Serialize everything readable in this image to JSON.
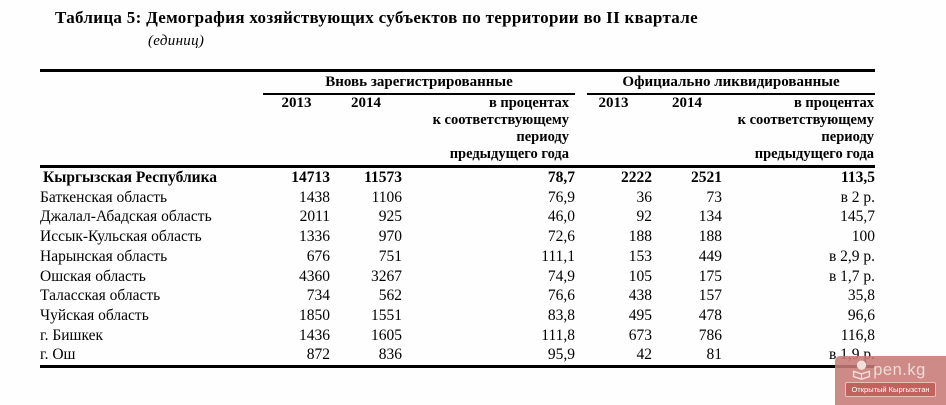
{
  "page": {
    "title": "Таблица 5: Демография хозяйствующих субъектов по территории во II квартале",
    "subtitle": "(единиц)"
  },
  "table": {
    "group1": "Вновь зарегистрированные",
    "group2": "Официально ликвидированные",
    "year_col1": "2013",
    "year_col2": "2014",
    "pct_header": "в процентах\nк соответствующему\nпериоду\nпредыдущего года",
    "rows": [
      {
        "territory": "Кыргызская Республика",
        "reg2013": "14713",
        "reg2014": "11573",
        "reg_pct": "78,7",
        "liq2013": "2222",
        "liq2014": "2521",
        "liq_pct": "113,5",
        "bold": true
      },
      {
        "territory": "Баткенская область",
        "reg2013": "1438",
        "reg2014": "1106",
        "reg_pct": "76,9",
        "liq2013": "36",
        "liq2014": "73",
        "liq_pct": "в 2 р.",
        "bold": false
      },
      {
        "territory": "Джалал-Абадская область",
        "reg2013": "2011",
        "reg2014": "925",
        "reg_pct": "46,0",
        "liq2013": "92",
        "liq2014": "134",
        "liq_pct": "145,7",
        "bold": false
      },
      {
        "territory": "Иссык-Кульская область",
        "reg2013": "1336",
        "reg2014": "970",
        "reg_pct": "72,6",
        "liq2013": "188",
        "liq2014": "188",
        "liq_pct": "100",
        "bold": false
      },
      {
        "territory": "Нарынская область",
        "reg2013": "676",
        "reg2014": "751",
        "reg_pct": "111,1",
        "liq2013": "153",
        "liq2014": "449",
        "liq_pct": "в 2,9 р.",
        "bold": false
      },
      {
        "territory": "Ошская область",
        "reg2013": "4360",
        "reg2014": "3267",
        "reg_pct": "74,9",
        "liq2013": "105",
        "liq2014": "175",
        "liq_pct": "в 1,7 р.",
        "bold": false
      },
      {
        "territory": "Таласская область",
        "reg2013": "734",
        "reg2014": "562",
        "reg_pct": "76,6",
        "liq2013": "438",
        "liq2014": "157",
        "liq_pct": "35,8",
        "bold": false
      },
      {
        "territory": "Чуйская область",
        "reg2013": "1850",
        "reg2014": "1551",
        "reg_pct": "83,8",
        "liq2013": "495",
        "liq2014": "478",
        "liq_pct": "96,6",
        "bold": false
      },
      {
        "territory": "г. Бишкек",
        "reg2013": "1436",
        "reg2014": "1605",
        "reg_pct": "111,8",
        "liq2013": "673",
        "liq2014": "786",
        "liq_pct": "116,8",
        "bold": false
      },
      {
        "territory": "г. Ош",
        "reg2013": "872",
        "reg2014": "836",
        "reg_pct": "95,9",
        "liq2013": "42",
        "liq2014": "81",
        "liq_pct": "в 1,9 р.",
        "bold": false
      }
    ]
  },
  "watermark": {
    "site": "pen.kg",
    "label": "Открытый Кыргызстан",
    "box_color": "rgba(199,122,117,0.88)",
    "site_color": "#f0d9d6",
    "label_bg": "rgba(193,93,88,0.9)",
    "label_border": "rgba(248,220,217,0.75)",
    "icon_color": "#f3dedb"
  }
}
